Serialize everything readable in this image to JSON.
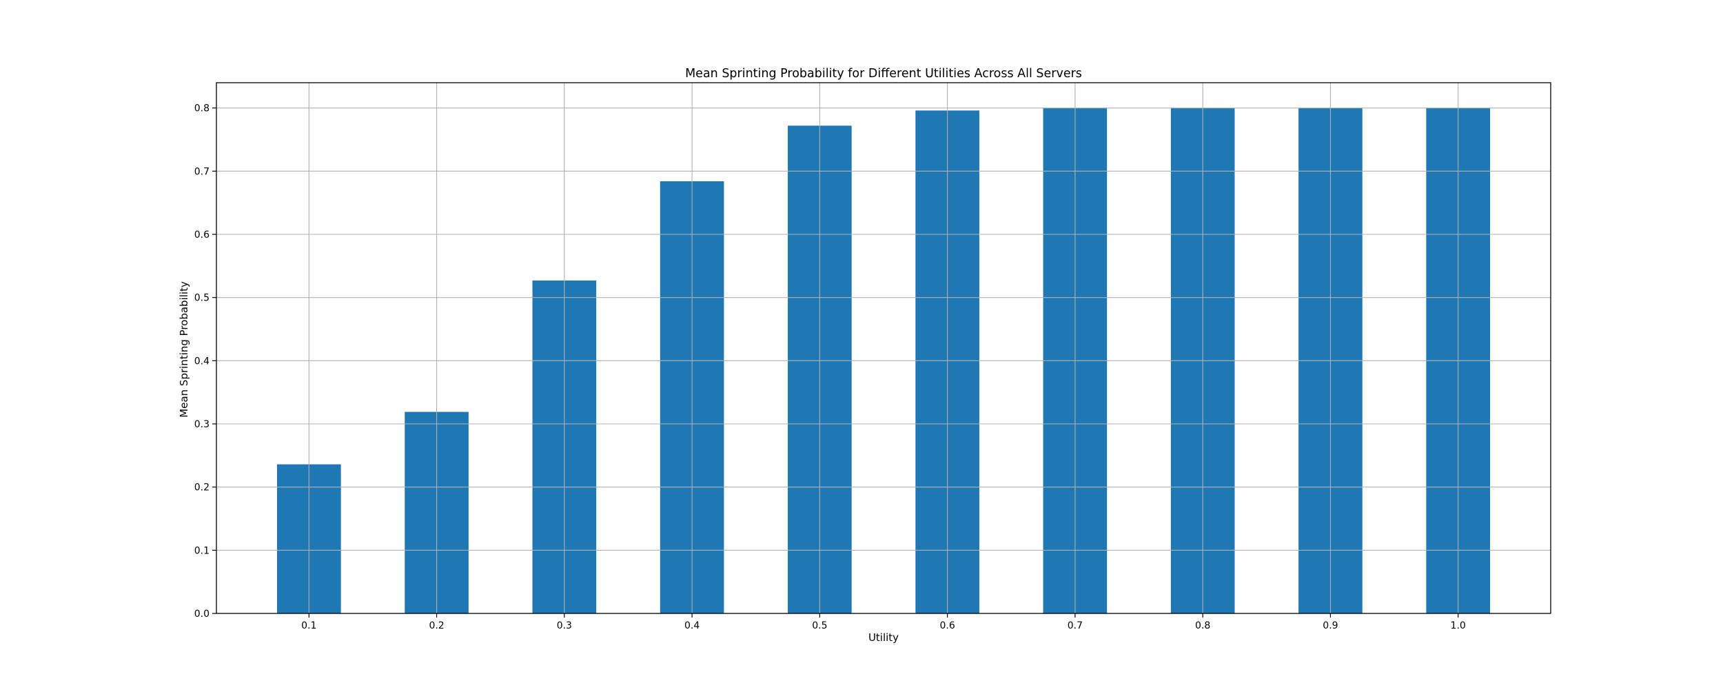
{
  "chart_data": {
    "type": "bar",
    "title": "Mean Sprinting Probability for Different Utilities Across All Servers",
    "xlabel": "Utility",
    "ylabel": "Mean Sprinting Probability",
    "categories": [
      "0.1",
      "0.2",
      "0.3",
      "0.4",
      "0.5",
      "0.6",
      "0.7",
      "0.8",
      "0.9",
      "1.0"
    ],
    "values": [
      0.236,
      0.319,
      0.527,
      0.684,
      0.772,
      0.796,
      0.8,
      0.8,
      0.8,
      0.8
    ],
    "ylim": [
      0,
      0.84
    ],
    "yticks": [
      0.0,
      0.1,
      0.2,
      0.3,
      0.4,
      0.5,
      0.6,
      0.7,
      0.8
    ],
    "ytick_labels": [
      "0.0",
      "0.1",
      "0.2",
      "0.3",
      "0.4",
      "0.5",
      "0.6",
      "0.7",
      "0.8"
    ],
    "grid": true,
    "bar_color": "#1f77b4",
    "grid_color": "#b0b0b0"
  }
}
